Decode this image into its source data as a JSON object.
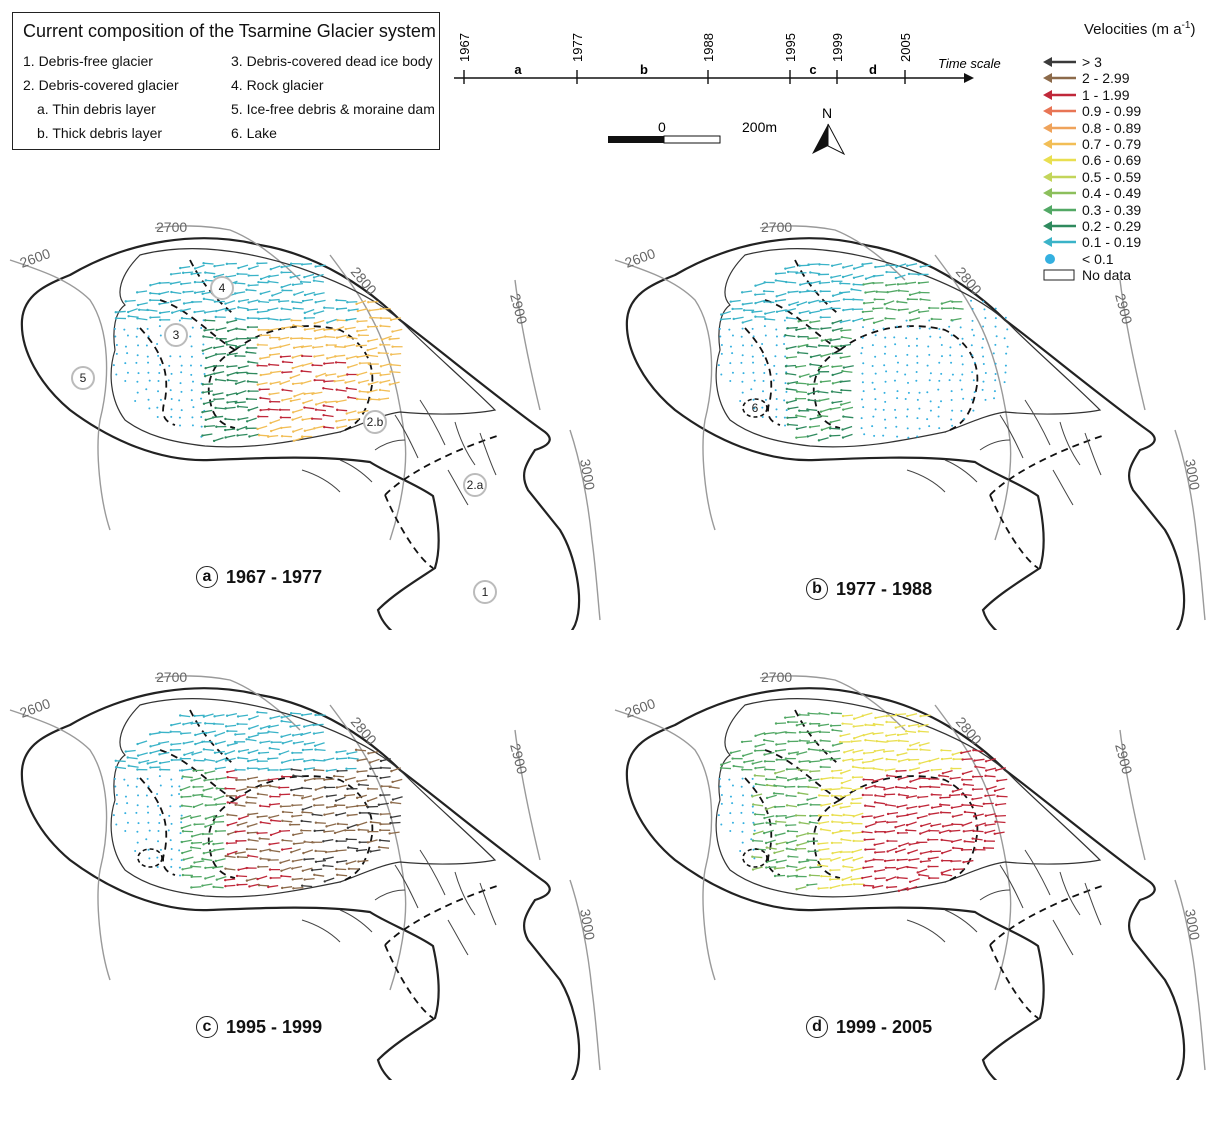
{
  "composition_legend": {
    "title": "Current composition of the Tsarmine Glacier system",
    "items": [
      "1. Debris-free glacier",
      "2. Debris-covered glacier",
      "a. Thin debris layer",
      "b. Thick debris layer",
      "3. Debris-covered dead ice body",
      "4. Rock glacier",
      "5. Ice-free debris & moraine dam",
      "6. Lake"
    ]
  },
  "time_scale": {
    "label": "Time scale",
    "years": [
      "1967",
      "1977",
      "1988",
      "1995",
      "1999",
      "2005"
    ],
    "periods": [
      "a",
      "b",
      "c",
      "d"
    ]
  },
  "scale_bar": {
    "start": "0",
    "end": "200m"
  },
  "north_arrow": {
    "label": "N",
    "icon": "north-arrow-icon"
  },
  "velocity_legend": {
    "title": "Velocities (m a",
    "title_sup": "-1",
    "title_close": ")",
    "classes": [
      {
        "label": "> 3",
        "color": "#3a3a3a"
      },
      {
        "label": "2 - 2.99",
        "color": "#8c6a4a"
      },
      {
        "label": "1 - 1.99",
        "color": "#c0283a"
      },
      {
        "label": "0.9 - 0.99",
        "color": "#e87555"
      },
      {
        "label": "0.8 - 0.89",
        "color": "#efa35b"
      },
      {
        "label": "0.7 - 0.79",
        "color": "#f2be56"
      },
      {
        "label": "0.6 - 0.69",
        "color": "#e9df50"
      },
      {
        "label": "0.5 - 0.59",
        "color": "#c3d55a"
      },
      {
        "label": "0.4 - 0.49",
        "color": "#8cbf5c"
      },
      {
        "label": "0.3 - 0.39",
        "color": "#52a865"
      },
      {
        "label": "0.2 - 0.29",
        "color": "#2f8a5e"
      },
      {
        "label": "0.1 - 0.19",
        "color": "#3ab3c8"
      }
    ],
    "dot_label": "< 0.1",
    "dot_color": "#34b0e0",
    "nodata_label": "No data"
  },
  "contour_labels": [
    "2600",
    "2700",
    "2800",
    "2900",
    "3000"
  ],
  "unit_markers": [
    "1",
    "2.a",
    "2.b",
    "3",
    "4",
    "5",
    "6"
  ],
  "panels": [
    {
      "letter": "a",
      "period": "1967 - 1977"
    },
    {
      "letter": "b",
      "period": "1977 - 1988"
    },
    {
      "letter": "c",
      "period": "1995 - 1999"
    },
    {
      "letter": "d",
      "period": "1999 - 2005"
    }
  ]
}
